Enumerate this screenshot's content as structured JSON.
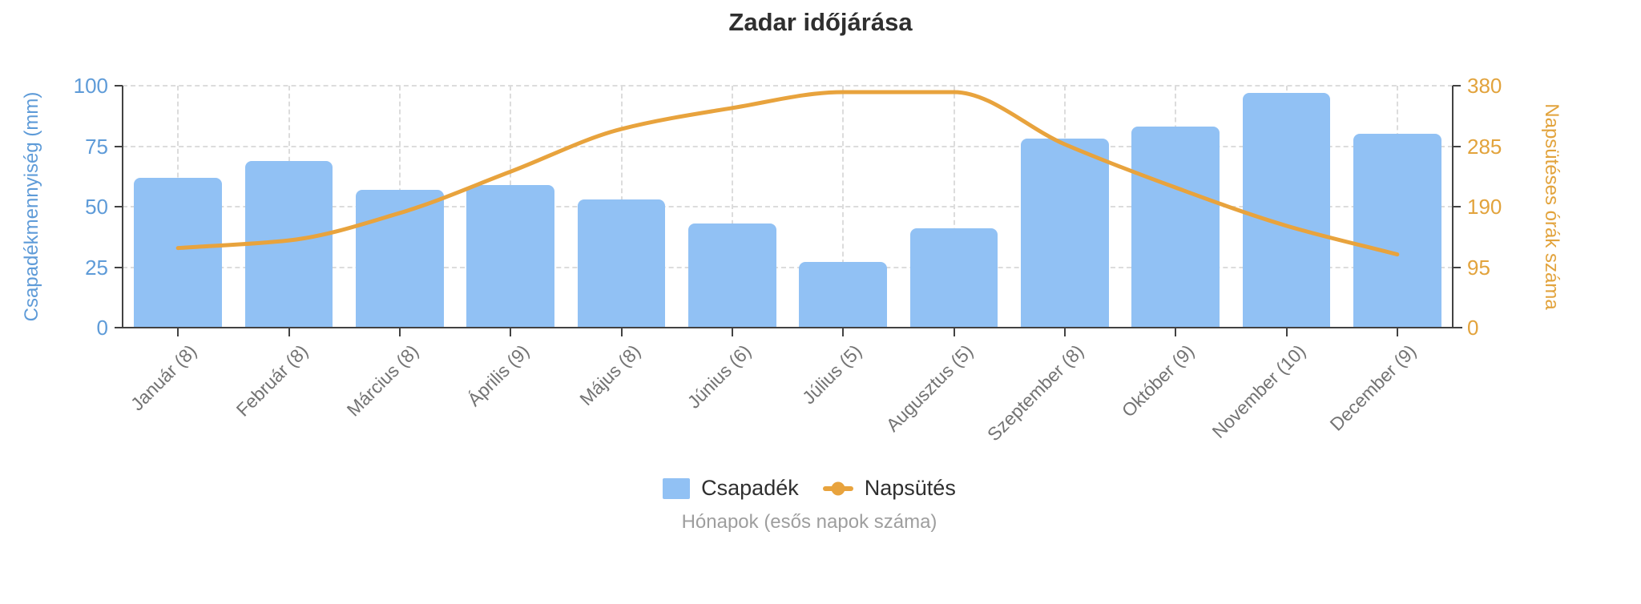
{
  "title": "Zadar időjárása",
  "x_axis_caption": "Hónapok (esős napok száma)",
  "legend": {
    "items": [
      {
        "label": "Csapadék",
        "marker": "blue-square"
      },
      {
        "label": "Napsütés",
        "marker": "orange-line-dot"
      }
    ]
  },
  "colors": {
    "bar": "#91c1f4",
    "line": "#e8a33d",
    "left_axis_text": "#5e9bd8",
    "right_axis_text": "#e2a33c",
    "axis_line": "#424242",
    "grid": "#dcdcdc",
    "title_text": "#2f2f2f",
    "x_tick_text": "#737373",
    "caption_text": "#9e9e9e"
  },
  "chart_data": {
    "type": "bar",
    "subtype": "combo-bar-line-dual-axis",
    "title": "Zadar időjárása",
    "categories": [
      "Január (8)",
      "Február (8)",
      "Március (8)",
      "Április (9)",
      "Május (8)",
      "Június (6)",
      "Július (5)",
      "Augusztus (5)",
      "Szeptember (8)",
      "Október (9)",
      "November (10)",
      "December (9)"
    ],
    "rainy_days": [
      8,
      8,
      8,
      9,
      8,
      6,
      5,
      5,
      8,
      9,
      10,
      9
    ],
    "series": [
      {
        "name": "Csapadék",
        "type": "bar",
        "axis": "left",
        "values": [
          62,
          69,
          57,
          59,
          53,
          43,
          27,
          41,
          78,
          83,
          97,
          80
        ]
      },
      {
        "name": "Napsütés",
        "type": "line",
        "axis": "right",
        "values": [
          125,
          137,
          180,
          245,
          312,
          345,
          370,
          370,
          288,
          220,
          160,
          115
        ]
      }
    ],
    "y_left": {
      "label": "Csapadékmennyiség (mm)",
      "ticks": [
        0,
        25,
        50,
        75,
        100
      ],
      "range": [
        0,
        100
      ]
    },
    "y_right": {
      "label": "Napsütéses órák száma",
      "ticks": [
        0,
        95,
        190,
        285,
        380
      ],
      "range": [
        0,
        380
      ]
    },
    "xlabel": "Hónapok (esős napok száma)",
    "grid": "dashed",
    "legend_position": "bottom"
  }
}
